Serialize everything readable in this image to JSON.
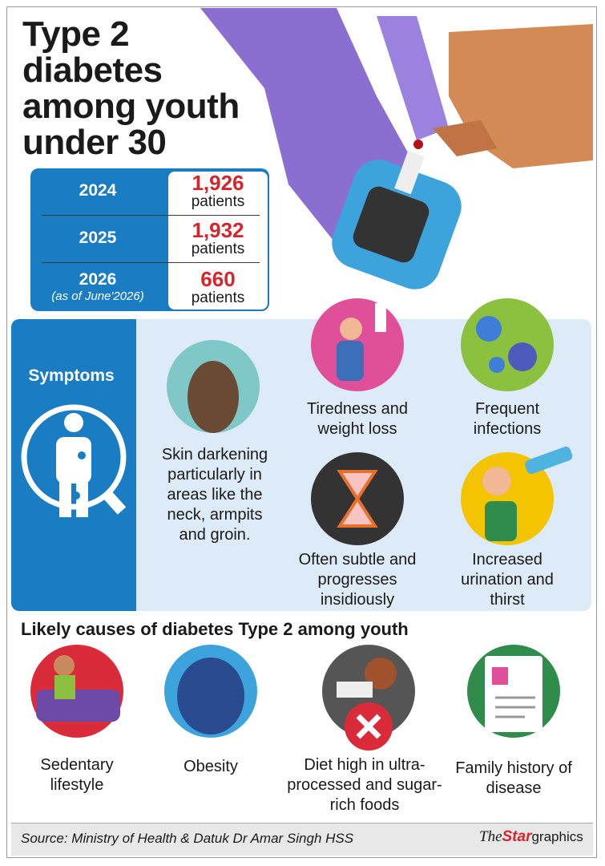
{
  "header": {
    "title_lines": [
      "Type 2",
      "diabetes",
      "among youth",
      "under 30"
    ]
  },
  "stats": {
    "rows": [
      {
        "year": "2024",
        "value": "1,926",
        "unit": "patients"
      },
      {
        "year": "2025",
        "value": "1,932",
        "unit": "patients"
      },
      {
        "year": "2026",
        "note": "(as of June'2026)",
        "value": "660",
        "unit": "patients"
      }
    ]
  },
  "symptoms": {
    "title": "Symptoms",
    "items": [
      {
        "label": "Skin darkening particularly in areas like the neck, armpits and groin."
      },
      {
        "label": "Tiredness and weight loss"
      },
      {
        "label": "Frequent infections"
      },
      {
        "label": "Often subtle and progresses insidiously"
      },
      {
        "label": "Increased urination and thirst"
      }
    ]
  },
  "causes": {
    "title": "Likely causes of diabetes Type 2 among youth",
    "items": [
      {
        "label": "Sedentary lifestyle"
      },
      {
        "label": "Obesity"
      },
      {
        "label": "Diet high in ultra-processed and sugar-rich foods"
      },
      {
        "label": "Family history of disease"
      }
    ]
  },
  "footer": {
    "source": "Source: Ministry of Health & Datuk Dr Amar Singh HSS",
    "logo": {
      "the": "The",
      "star": "Star",
      "graphics": "graphics"
    }
  }
}
